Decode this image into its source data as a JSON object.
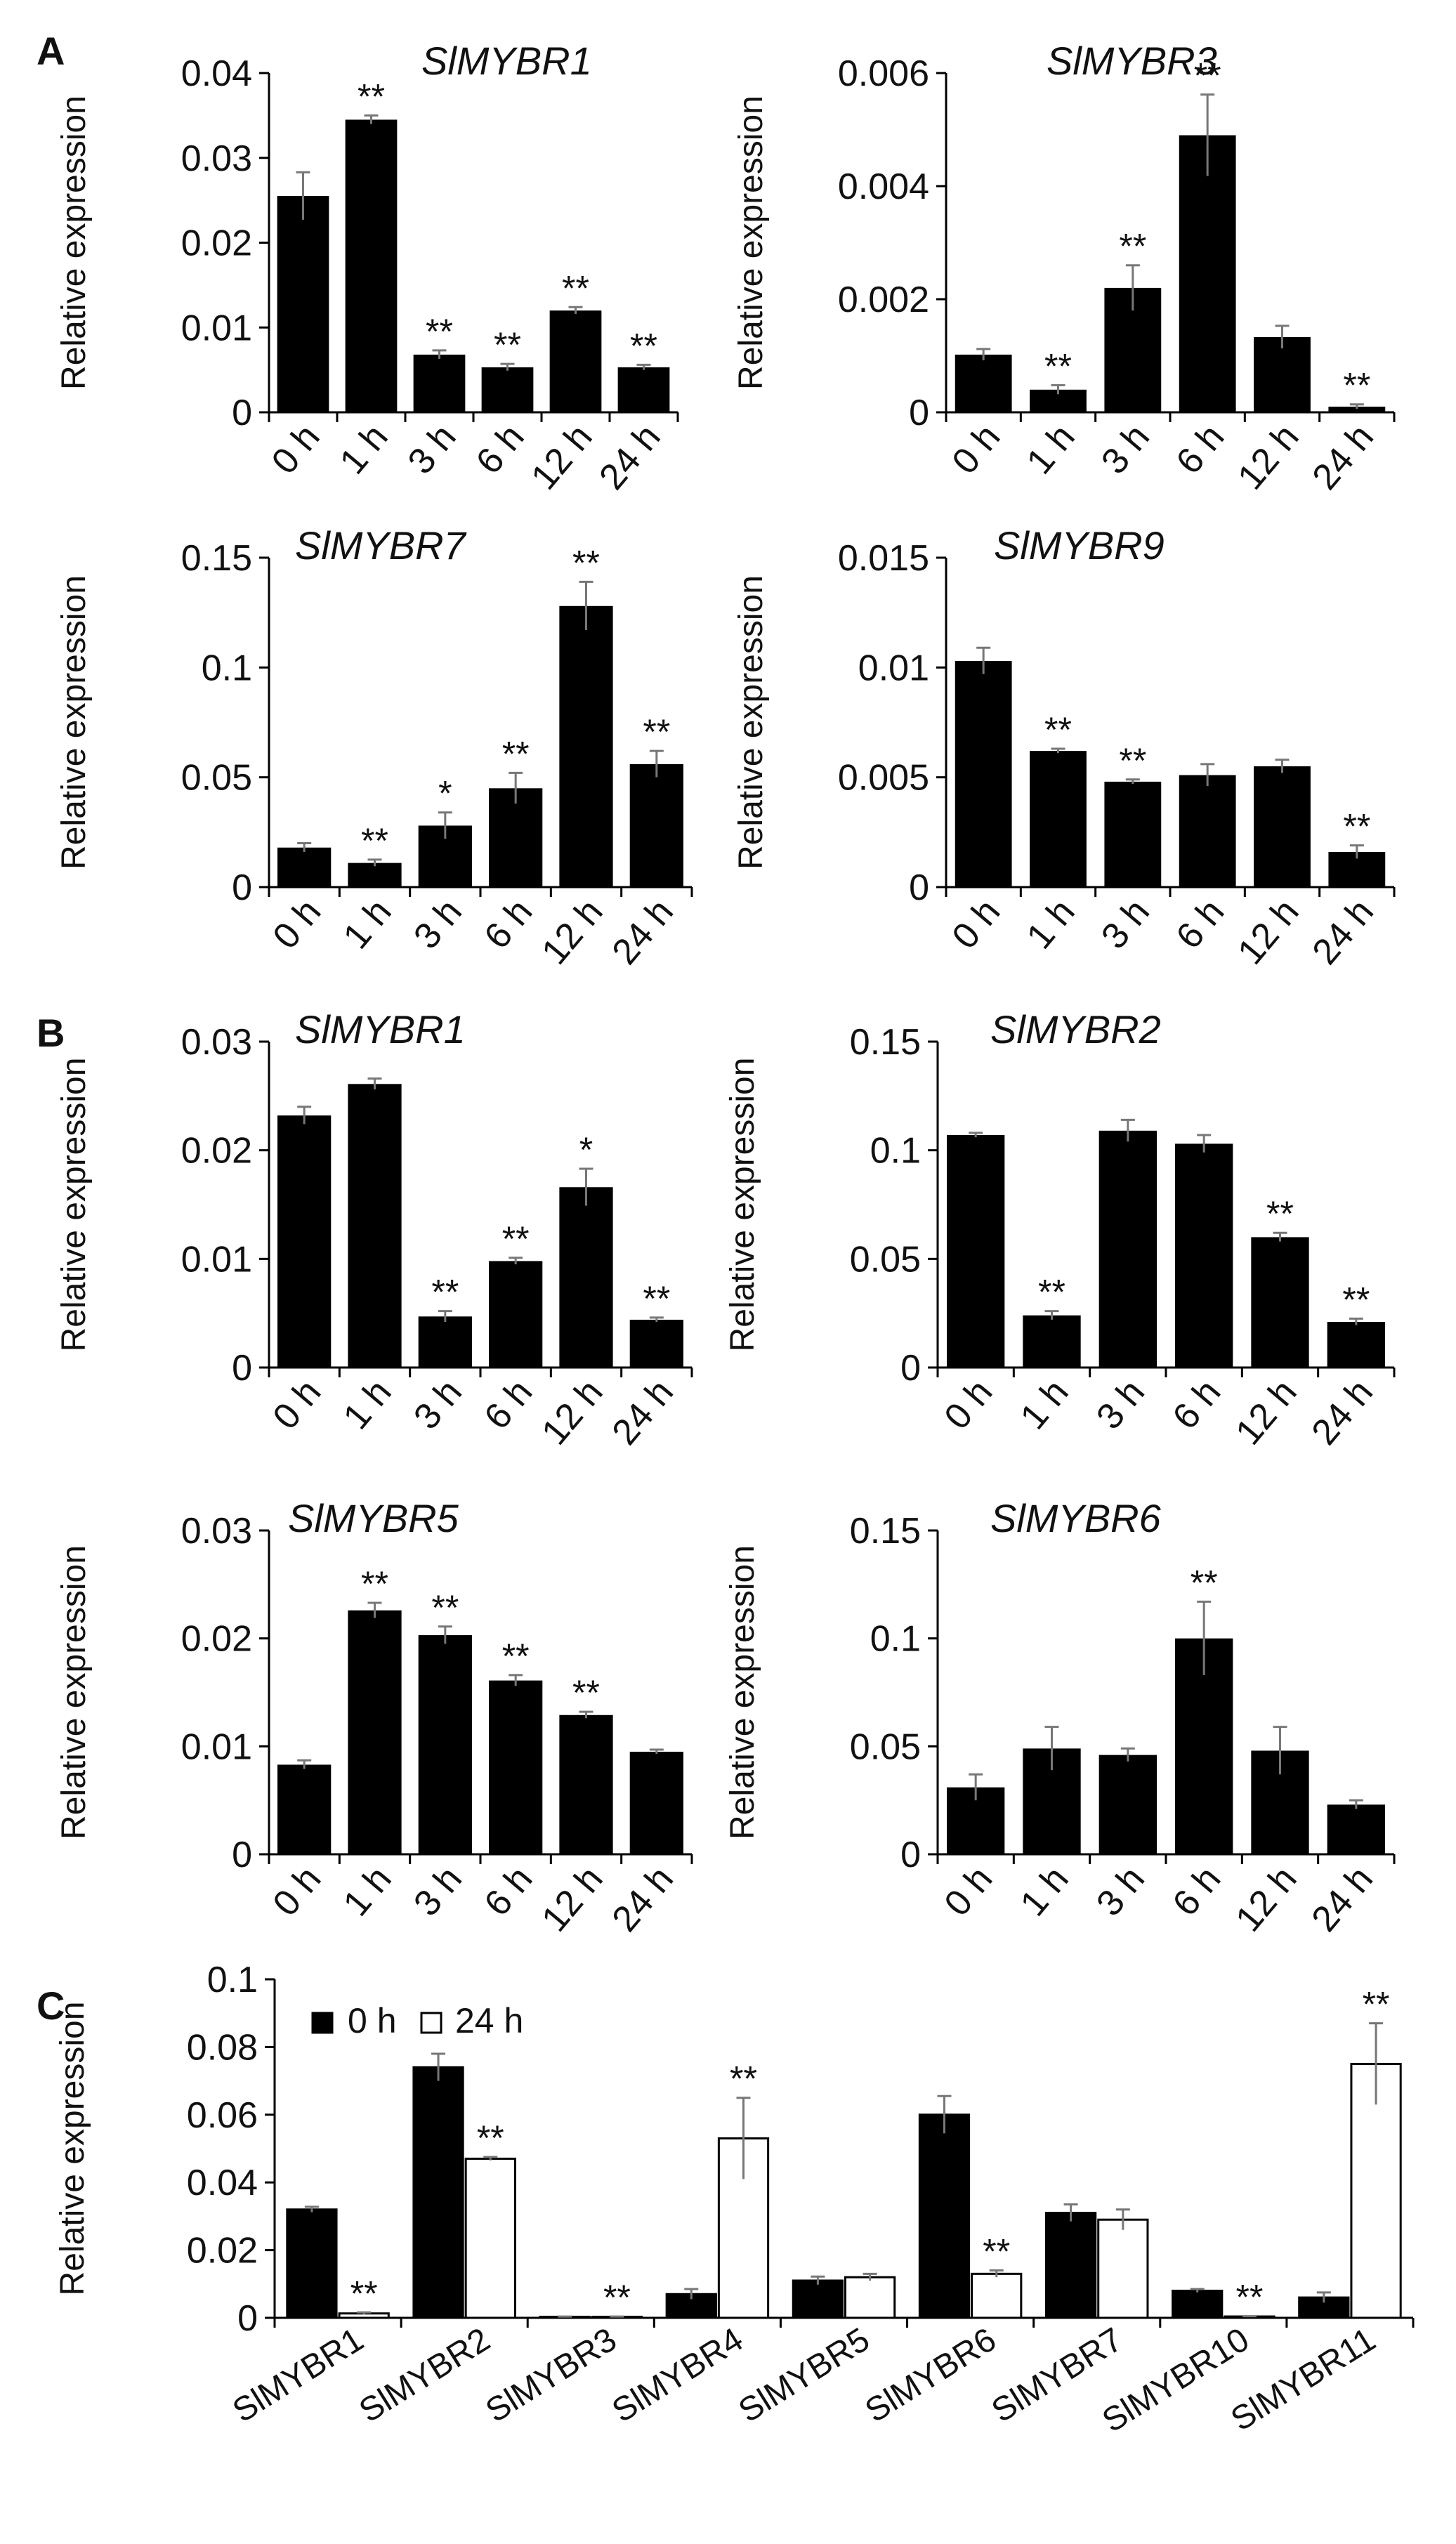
{
  "panels": {
    "a": "A",
    "b": "B",
    "c": "C"
  },
  "chart_data": [
    {
      "type": "bar",
      "panel": "A",
      "title": "SlMYBR1",
      "ylabel": "Relative expression",
      "categories": [
        "0 h",
        "1 h",
        "3 h",
        "6 h",
        "12 h",
        "24 h"
      ],
      "values": [
        0.0255,
        0.0345,
        0.0068,
        0.0053,
        0.012,
        0.0053
      ],
      "errors": [
        0.0028,
        0.0005,
        0.0005,
        0.0004,
        0.0004,
        0.0003
      ],
      "sig": [
        "",
        "**",
        "**",
        "**",
        "**",
        "**"
      ],
      "ylim": [
        0,
        0.04
      ],
      "yticks": [
        0,
        0.01,
        0.02,
        0.03,
        0.04
      ],
      "ytick_labels": [
        "0",
        "0.01",
        "0.02",
        "0.03",
        "0.04"
      ]
    },
    {
      "type": "bar",
      "panel": "A",
      "title": "SlMYBR3",
      "ylabel": "Relative expression",
      "categories": [
        "0 h",
        "1 h",
        "3 h",
        "6 h",
        "12 h",
        "24 h"
      ],
      "values": [
        0.00102,
        0.0004,
        0.0022,
        0.0049,
        0.00133,
        0.0001
      ],
      "errors": [
        0.0001,
        8e-05,
        0.0004,
        0.00072,
        0.0002,
        4e-05
      ],
      "sig": [
        "",
        "**",
        "**",
        "**",
        "",
        "**"
      ],
      "ylim": [
        0,
        0.006
      ],
      "yticks": [
        0,
        0.002,
        0.004,
        0.006
      ],
      "ytick_labels": [
        "0",
        "0.002",
        "0.004",
        "0.006"
      ]
    },
    {
      "type": "bar",
      "panel": "A",
      "title": "SlMYBR7",
      "ylabel": "Relative expression",
      "categories": [
        "0 h",
        "1 h",
        "3 h",
        "6 h",
        "12 h",
        "24 h"
      ],
      "values": [
        0.018,
        0.011,
        0.028,
        0.045,
        0.128,
        0.056
      ],
      "errors": [
        0.002,
        0.0015,
        0.006,
        0.007,
        0.011,
        0.006
      ],
      "sig": [
        "",
        "**",
        "*",
        "**",
        "**",
        "**"
      ],
      "ylim": [
        0,
        0.15
      ],
      "yticks": [
        0,
        0.05,
        0.1,
        0.15
      ],
      "ytick_labels": [
        "0",
        "0.05",
        "0.1",
        "0.15"
      ]
    },
    {
      "type": "bar",
      "panel": "A",
      "title": "SlMYBR9",
      "ylabel": "Relative expression",
      "categories": [
        "0 h",
        "1 h",
        "3 h",
        "6 h",
        "12 h",
        "24 h"
      ],
      "values": [
        0.0103,
        0.0062,
        0.0048,
        0.0051,
        0.0055,
        0.0016
      ],
      "errors": [
        0.0006,
        0.0001,
        0.0001,
        0.0005,
        0.0003,
        0.0003
      ],
      "sig": [
        "",
        "**",
        "**",
        "",
        "",
        "**"
      ],
      "ylim": [
        0,
        0.015
      ],
      "yticks": [
        0,
        0.005,
        0.01,
        0.015
      ],
      "ytick_labels": [
        "0",
        "0.005",
        "0.01",
        "0.015"
      ]
    },
    {
      "type": "bar",
      "panel": "B",
      "title": "SlMYBR1",
      "ylabel": "Relative expression",
      "categories": [
        "0 h",
        "1 h",
        "3 h",
        "6 h",
        "12 h",
        "24 h"
      ],
      "values": [
        0.0232,
        0.0261,
        0.0047,
        0.0098,
        0.0166,
        0.0044
      ],
      "errors": [
        0.0008,
        0.0005,
        0.0005,
        0.0003,
        0.0017,
        0.0002
      ],
      "sig": [
        "",
        "",
        "**",
        "**",
        "*",
        "**"
      ],
      "ylim": [
        0,
        0.03
      ],
      "yticks": [
        0,
        0.01,
        0.02,
        0.03
      ],
      "ytick_labels": [
        "0",
        "0.01",
        "0.02",
        "0.03"
      ]
    },
    {
      "type": "bar",
      "panel": "B",
      "title": "SlMYBR2",
      "ylabel": "Relative expression",
      "categories": [
        "0 h",
        "1 h",
        "3 h",
        "6 h",
        "12 h",
        "24 h"
      ],
      "values": [
        0.107,
        0.024,
        0.109,
        0.103,
        0.06,
        0.021
      ],
      "errors": [
        0.001,
        0.002,
        0.005,
        0.004,
        0.002,
        0.0015
      ],
      "sig": [
        "",
        "**",
        "",
        "",
        "**",
        "**"
      ],
      "ylim": [
        0,
        0.15
      ],
      "yticks": [
        0,
        0.05,
        0.1,
        0.15
      ],
      "ytick_labels": [
        "0",
        "0.05",
        "0.1",
        "0.15"
      ]
    },
    {
      "type": "bar",
      "panel": "B",
      "title": "SlMYBR5",
      "ylabel": "Relative expression",
      "categories": [
        "0 h",
        "1 h",
        "3 h",
        "6 h",
        "12 h",
        "24 h"
      ],
      "values": [
        0.0083,
        0.0226,
        0.0203,
        0.0161,
        0.0129,
        0.0095
      ],
      "errors": [
        0.0004,
        0.0007,
        0.0008,
        0.0005,
        0.0003,
        0.0002
      ],
      "sig": [
        "",
        "**",
        "**",
        "**",
        "**",
        ""
      ],
      "ylim": [
        0,
        0.03
      ],
      "yticks": [
        0,
        0.01,
        0.02,
        0.03
      ],
      "ytick_labels": [
        "0",
        "0.01",
        "0.02",
        "0.03"
      ]
    },
    {
      "type": "bar",
      "panel": "B",
      "title": "SlMYBR6",
      "ylabel": "Relative expression",
      "categories": [
        "0 h",
        "1 h",
        "3 h",
        "6 h",
        "12 h",
        "24 h"
      ],
      "values": [
        0.031,
        0.049,
        0.046,
        0.1,
        0.048,
        0.023
      ],
      "errors": [
        0.006,
        0.01,
        0.003,
        0.017,
        0.011,
        0.002
      ],
      "sig": [
        "",
        "",
        "",
        "**",
        "",
        ""
      ],
      "ylim": [
        0,
        0.15
      ],
      "yticks": [
        0,
        0.05,
        0.1,
        0.15
      ],
      "ytick_labels": [
        "0",
        "0.05",
        "0.1",
        "0.15"
      ]
    },
    {
      "type": "bar",
      "panel": "C",
      "ylabel": "Relative expression",
      "categories": [
        "SlMYBR1",
        "SlMYBR2",
        "SlMYBR3",
        "SlMYBR4",
        "SlMYBR5",
        "SlMYBR6",
        "SlMYBR7",
        "SlMYBR10",
        "SlMYBR11"
      ],
      "series": [
        {
          "name": "0 h",
          "fill": "#000000",
          "values": [
            0.032,
            0.074,
            0.0003,
            0.007,
            0.011,
            0.06,
            0.031,
            0.008,
            0.006
          ],
          "errors": [
            0.0008,
            0.004,
            0.0001,
            0.0015,
            0.0012,
            0.0055,
            0.0025,
            0.0005,
            0.0015
          ],
          "sig": [
            "",
            "",
            "",
            "",
            "",
            "",
            "",
            "",
            ""
          ]
        },
        {
          "name": "24 h",
          "fill": "#ffffff",
          "values": [
            0.0013,
            0.047,
            0.0003,
            0.053,
            0.012,
            0.013,
            0.029,
            0.0004,
            0.075
          ],
          "errors": [
            0.0003,
            0.0005,
            0.0001,
            0.012,
            0.001,
            0.001,
            0.003,
            0.0001,
            0.012
          ],
          "sig": [
            "**",
            "**",
            "**",
            "**",
            "",
            "**",
            "",
            "**",
            "**"
          ]
        }
      ],
      "legend": [
        "0 h",
        "24 h"
      ],
      "ylim": [
        0,
        0.1
      ],
      "yticks": [
        0,
        0.02,
        0.04,
        0.06,
        0.08,
        0.1
      ],
      "ytick_labels": [
        "0",
        "0.02",
        "0.04",
        "0.06",
        "0.08",
        "0.1"
      ]
    }
  ]
}
